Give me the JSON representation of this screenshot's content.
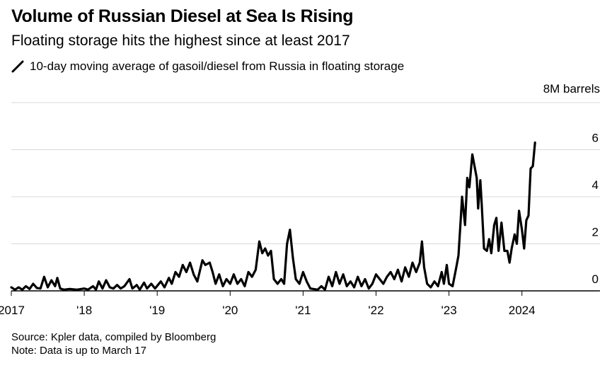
{
  "header": {
    "title": "Volume of Russian Diesel at Sea Is Rising",
    "subtitle": "Floating storage hits the highest since at least 2017",
    "legend_label": "10-day moving average of gasoil/diesel from Russia in floating storage",
    "unit_label": "8M barrels"
  },
  "footer": {
    "source": "Source: Kpler data, compiled by Bloomberg",
    "note": "Note: Data is up to March 17"
  },
  "colors": {
    "line": "#000000",
    "grid": "#d9d9d9",
    "axis": "#000000"
  },
  "chart_data": {
    "type": "line",
    "title": "Volume of Russian Diesel at Sea Is Rising",
    "subtitle": "Floating storage hits the highest since at least 2017",
    "ylabel": "8M barrels",
    "ylim": [
      0,
      8
    ],
    "yticks": [
      0,
      2,
      4,
      6
    ],
    "xlim": [
      2017.0,
      2024.75
    ],
    "xticks": [
      {
        "value": 2017,
        "label": "2017"
      },
      {
        "value": 2018,
        "label": "'18"
      },
      {
        "value": 2019,
        "label": "'19"
      },
      {
        "value": 2020,
        "label": "'20"
      },
      {
        "value": 2021,
        "label": "'21"
      },
      {
        "value": 2022,
        "label": "'22"
      },
      {
        "value": 2023,
        "label": "'23"
      },
      {
        "value": 2024,
        "label": "2024"
      }
    ],
    "grid": true,
    "series": [
      {
        "name": "10-day moving average of gasoil/diesel from Russia in floating storage",
        "points": [
          [
            2017.0,
            0.15
          ],
          [
            2017.05,
            0.05
          ],
          [
            2017.1,
            0.15
          ],
          [
            2017.15,
            0.05
          ],
          [
            2017.2,
            0.2
          ],
          [
            2017.25,
            0.08
          ],
          [
            2017.3,
            0.3
          ],
          [
            2017.35,
            0.12
          ],
          [
            2017.4,
            0.1
          ],
          [
            2017.45,
            0.6
          ],
          [
            2017.5,
            0.15
          ],
          [
            2017.55,
            0.45
          ],
          [
            2017.6,
            0.2
          ],
          [
            2017.63,
            0.55
          ],
          [
            2017.67,
            0.1
          ],
          [
            2017.72,
            0.05
          ],
          [
            2017.8,
            0.08
          ],
          [
            2017.9,
            0.05
          ],
          [
            2018.0,
            0.1
          ],
          [
            2018.05,
            0.05
          ],
          [
            2018.12,
            0.2
          ],
          [
            2018.16,
            0.05
          ],
          [
            2018.2,
            0.4
          ],
          [
            2018.25,
            0.1
          ],
          [
            2018.3,
            0.45
          ],
          [
            2018.35,
            0.15
          ],
          [
            2018.4,
            0.1
          ],
          [
            2018.45,
            0.25
          ],
          [
            2018.5,
            0.1
          ],
          [
            2018.55,
            0.2
          ],
          [
            2018.62,
            0.5
          ],
          [
            2018.66,
            0.1
          ],
          [
            2018.72,
            0.25
          ],
          [
            2018.76,
            0.05
          ],
          [
            2018.82,
            0.35
          ],
          [
            2018.86,
            0.1
          ],
          [
            2018.92,
            0.3
          ],
          [
            2018.97,
            0.1
          ],
          [
            2019.05,
            0.4
          ],
          [
            2019.1,
            0.15
          ],
          [
            2019.16,
            0.55
          ],
          [
            2019.2,
            0.3
          ],
          [
            2019.25,
            0.8
          ],
          [
            2019.3,
            0.6
          ],
          [
            2019.35,
            1.1
          ],
          [
            2019.4,
            0.8
          ],
          [
            2019.45,
            1.2
          ],
          [
            2019.5,
            0.7
          ],
          [
            2019.55,
            0.4
          ],
          [
            2019.62,
            1.3
          ],
          [
            2019.66,
            1.1
          ],
          [
            2019.72,
            1.2
          ],
          [
            2019.76,
            0.8
          ],
          [
            2019.8,
            0.3
          ],
          [
            2019.85,
            0.7
          ],
          [
            2019.9,
            0.2
          ],
          [
            2019.95,
            0.5
          ],
          [
            2020.0,
            0.3
          ],
          [
            2020.05,
            0.7
          ],
          [
            2020.1,
            0.3
          ],
          [
            2020.15,
            0.5
          ],
          [
            2020.2,
            0.2
          ],
          [
            2020.25,
            0.8
          ],
          [
            2020.3,
            0.6
          ],
          [
            2020.35,
            0.9
          ],
          [
            2020.4,
            2.1
          ],
          [
            2020.44,
            1.6
          ],
          [
            2020.48,
            1.8
          ],
          [
            2020.52,
            1.5
          ],
          [
            2020.56,
            1.7
          ],
          [
            2020.6,
            0.5
          ],
          [
            2020.65,
            0.3
          ],
          [
            2020.7,
            0.5
          ],
          [
            2020.74,
            0.3
          ],
          [
            2020.78,
            2.0
          ],
          [
            2020.82,
            2.6
          ],
          [
            2020.86,
            1.4
          ],
          [
            2020.9,
            0.5
          ],
          [
            2020.95,
            0.3
          ],
          [
            2021.0,
            0.8
          ],
          [
            2021.05,
            0.4
          ],
          [
            2021.1,
            0.1
          ],
          [
            2021.2,
            0.05
          ],
          [
            2021.25,
            0.2
          ],
          [
            2021.3,
            0.05
          ],
          [
            2021.35,
            0.6
          ],
          [
            2021.4,
            0.2
          ],
          [
            2021.45,
            0.8
          ],
          [
            2021.5,
            0.3
          ],
          [
            2021.55,
            0.7
          ],
          [
            2021.6,
            0.2
          ],
          [
            2021.65,
            0.4
          ],
          [
            2021.7,
            0.15
          ],
          [
            2021.75,
            0.6
          ],
          [
            2021.8,
            0.2
          ],
          [
            2021.85,
            0.5
          ],
          [
            2021.9,
            0.1
          ],
          [
            2021.95,
            0.3
          ],
          [
            2022.0,
            0.7
          ],
          [
            2022.05,
            0.5
          ],
          [
            2022.1,
            0.3
          ],
          [
            2022.15,
            0.6
          ],
          [
            2022.2,
            0.8
          ],
          [
            2022.25,
            0.5
          ],
          [
            2022.3,
            0.9
          ],
          [
            2022.35,
            0.4
          ],
          [
            2022.4,
            1.0
          ],
          [
            2022.45,
            0.6
          ],
          [
            2022.5,
            1.2
          ],
          [
            2022.55,
            0.8
          ],
          [
            2022.6,
            1.2
          ],
          [
            2022.63,
            2.1
          ],
          [
            2022.66,
            1.0
          ],
          [
            2022.7,
            0.3
          ],
          [
            2022.75,
            0.15
          ],
          [
            2022.8,
            0.4
          ],
          [
            2022.85,
            0.2
          ],
          [
            2022.9,
            0.8
          ],
          [
            2022.93,
            0.3
          ],
          [
            2022.97,
            1.1
          ],
          [
            2023.0,
            0.3
          ],
          [
            2023.05,
            0.2
          ],
          [
            2023.1,
            1.0
          ],
          [
            2023.13,
            1.5
          ],
          [
            2023.16,
            3.0
          ],
          [
            2023.18,
            4.0
          ],
          [
            2023.22,
            2.8
          ],
          [
            2023.25,
            4.8
          ],
          [
            2023.28,
            4.4
          ],
          [
            2023.32,
            5.8
          ],
          [
            2023.35,
            5.3
          ],
          [
            2023.38,
            4.8
          ],
          [
            2023.4,
            3.5
          ],
          [
            2023.43,
            4.7
          ],
          [
            2023.45,
            3.6
          ],
          [
            2023.48,
            1.8
          ],
          [
            2023.52,
            1.7
          ],
          [
            2023.55,
            2.2
          ],
          [
            2023.58,
            1.6
          ],
          [
            2023.62,
            2.8
          ],
          [
            2023.65,
            3.1
          ],
          [
            2023.68,
            1.7
          ],
          [
            2023.72,
            2.9
          ],
          [
            2023.76,
            1.7
          ],
          [
            2023.8,
            1.7
          ],
          [
            2023.83,
            1.2
          ],
          [
            2023.86,
            1.8
          ],
          [
            2023.9,
            2.4
          ],
          [
            2023.93,
            2.0
          ],
          [
            2023.96,
            3.4
          ],
          [
            2024.0,
            2.6
          ],
          [
            2024.03,
            1.8
          ],
          [
            2024.06,
            3.0
          ],
          [
            2024.09,
            3.2
          ],
          [
            2024.12,
            5.2
          ],
          [
            2024.15,
            5.3
          ],
          [
            2024.18,
            6.3
          ]
        ]
      }
    ]
  }
}
